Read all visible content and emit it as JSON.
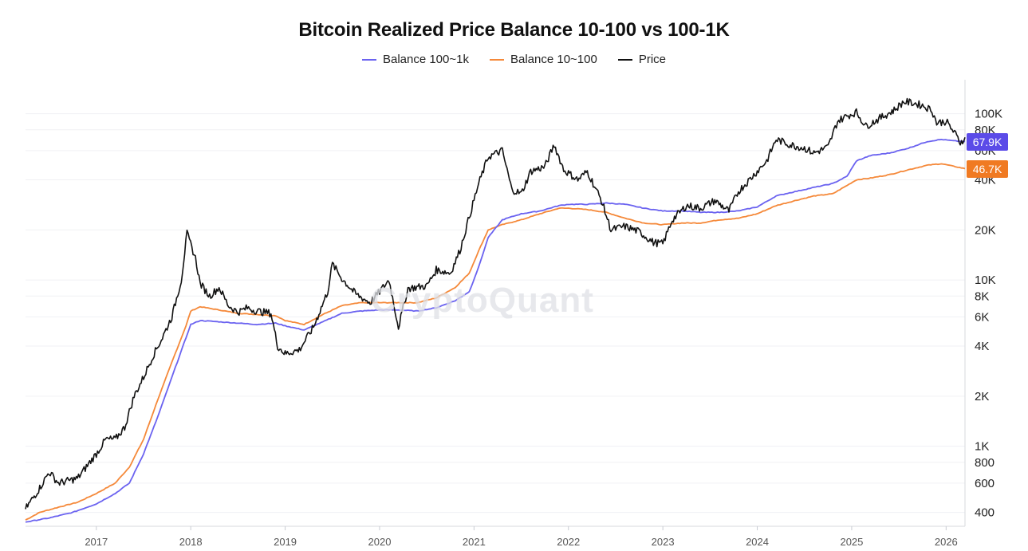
{
  "chart_data": {
    "type": "line",
    "title": "Bitcoin Realized Price Balance 10-100 vs 100-1K",
    "y_scale": "log",
    "ylim": [
      330,
      160000
    ],
    "xlim": [
      2016.25,
      2026.2
    ],
    "y_ticks": [
      {
        "value": 400,
        "label": "400"
      },
      {
        "value": 600,
        "label": "600"
      },
      {
        "value": 800,
        "label": "800"
      },
      {
        "value": 1000,
        "label": "1K"
      },
      {
        "value": 2000,
        "label": "2K"
      },
      {
        "value": 4000,
        "label": "4K"
      },
      {
        "value": 6000,
        "label": "6K"
      },
      {
        "value": 8000,
        "label": "8K"
      },
      {
        "value": 10000,
        "label": "10K"
      },
      {
        "value": 20000,
        "label": "20K"
      },
      {
        "value": 40000,
        "label": "40K"
      },
      {
        "value": 60000,
        "label": "60K"
      },
      {
        "value": 80000,
        "label": "80K"
      },
      {
        "value": 100000,
        "label": "100K"
      }
    ],
    "x_ticks": [
      {
        "value": 2017,
        "label": "2017"
      },
      {
        "value": 2018,
        "label": "2018"
      },
      {
        "value": 2019,
        "label": "2019"
      },
      {
        "value": 2020,
        "label": "2020"
      },
      {
        "value": 2021,
        "label": "2021"
      },
      {
        "value": 2022,
        "label": "2022"
      },
      {
        "value": 2023,
        "label": "2023"
      },
      {
        "value": 2024,
        "label": "2024"
      },
      {
        "value": 2025,
        "label": "2025"
      },
      {
        "value": 2026,
        "label": "2026"
      }
    ],
    "grid": true,
    "legend": "top-center",
    "series": [
      {
        "name": "Balance 100~1k",
        "color": "#6b63f0",
        "last_value_label": "67.9K",
        "points": [
          [
            2016.25,
            350
          ],
          [
            2016.5,
            370
          ],
          [
            2016.75,
            400
          ],
          [
            2017.0,
            450
          ],
          [
            2017.2,
            520
          ],
          [
            2017.35,
            600
          ],
          [
            2017.5,
            900
          ],
          [
            2017.65,
            1500
          ],
          [
            2017.8,
            2600
          ],
          [
            2017.95,
            4500
          ],
          [
            2018.0,
            5400
          ],
          [
            2018.1,
            5700
          ],
          [
            2018.3,
            5600
          ],
          [
            2018.5,
            5500
          ],
          [
            2018.7,
            5400
          ],
          [
            2018.9,
            5500
          ],
          [
            2019.0,
            5300
          ],
          [
            2019.2,
            5000
          ],
          [
            2019.4,
            5600
          ],
          [
            2019.6,
            6300
          ],
          [
            2019.8,
            6500
          ],
          [
            2020.0,
            6600
          ],
          [
            2020.2,
            6600
          ],
          [
            2020.4,
            6500
          ],
          [
            2020.6,
            6800
          ],
          [
            2020.8,
            7500
          ],
          [
            2020.95,
            8500
          ],
          [
            2021.05,
            12000
          ],
          [
            2021.15,
            18000
          ],
          [
            2021.3,
            23000
          ],
          [
            2021.5,
            25000
          ],
          [
            2021.7,
            26000
          ],
          [
            2021.9,
            28000
          ],
          [
            2022.0,
            28500
          ],
          [
            2022.2,
            28500
          ],
          [
            2022.4,
            29000
          ],
          [
            2022.6,
            28500
          ],
          [
            2022.8,
            27000
          ],
          [
            2023.0,
            26000
          ],
          [
            2023.2,
            26000
          ],
          [
            2023.4,
            25500
          ],
          [
            2023.6,
            25500
          ],
          [
            2023.8,
            26000
          ],
          [
            2024.0,
            27500
          ],
          [
            2024.2,
            32000
          ],
          [
            2024.4,
            34000
          ],
          [
            2024.6,
            36000
          ],
          [
            2024.8,
            38000
          ],
          [
            2024.95,
            42000
          ],
          [
            2025.05,
            52000
          ],
          [
            2025.2,
            56000
          ],
          [
            2025.4,
            58000
          ],
          [
            2025.6,
            62000
          ],
          [
            2025.8,
            68000
          ],
          [
            2025.95,
            70000
          ],
          [
            2026.1,
            68500
          ],
          [
            2026.2,
            67900
          ]
        ]
      },
      {
        "name": "Balance 10~100",
        "color": "#f5893a",
        "last_value_label": "46.7K",
        "points": [
          [
            2016.25,
            360
          ],
          [
            2016.4,
            400
          ],
          [
            2016.6,
            430
          ],
          [
            2016.8,
            460
          ],
          [
            2017.0,
            520
          ],
          [
            2017.2,
            600
          ],
          [
            2017.35,
            750
          ],
          [
            2017.5,
            1100
          ],
          [
            2017.65,
            1900
          ],
          [
            2017.8,
            3200
          ],
          [
            2017.95,
            5300
          ],
          [
            2018.0,
            6500
          ],
          [
            2018.1,
            6900
          ],
          [
            2018.3,
            6600
          ],
          [
            2018.5,
            6300
          ],
          [
            2018.7,
            6200
          ],
          [
            2018.9,
            6100
          ],
          [
            2019.0,
            5700
          ],
          [
            2019.2,
            5400
          ],
          [
            2019.4,
            6200
          ],
          [
            2019.6,
            7000
          ],
          [
            2019.8,
            7300
          ],
          [
            2020.0,
            7300
          ],
          [
            2020.2,
            7300
          ],
          [
            2020.4,
            7300
          ],
          [
            2020.6,
            7800
          ],
          [
            2020.8,
            9000
          ],
          [
            2020.95,
            11000
          ],
          [
            2021.05,
            15000
          ],
          [
            2021.15,
            20000
          ],
          [
            2021.3,
            21500
          ],
          [
            2021.5,
            23000
          ],
          [
            2021.7,
            25000
          ],
          [
            2021.9,
            27000
          ],
          [
            2022.0,
            27000
          ],
          [
            2022.2,
            26500
          ],
          [
            2022.4,
            25500
          ],
          [
            2022.6,
            23500
          ],
          [
            2022.8,
            22000
          ],
          [
            2023.0,
            21500
          ],
          [
            2023.2,
            22000
          ],
          [
            2023.4,
            22000
          ],
          [
            2023.6,
            23000
          ],
          [
            2023.8,
            23500
          ],
          [
            2024.0,
            25000
          ],
          [
            2024.2,
            28000
          ],
          [
            2024.4,
            30000
          ],
          [
            2024.6,
            32000
          ],
          [
            2024.8,
            33000
          ],
          [
            2024.95,
            37000
          ],
          [
            2025.05,
            40000
          ],
          [
            2025.2,
            41000
          ],
          [
            2025.4,
            43000
          ],
          [
            2025.6,
            46000
          ],
          [
            2025.8,
            49000
          ],
          [
            2025.95,
            50000
          ],
          [
            2026.1,
            48000
          ],
          [
            2026.2,
            46700
          ]
        ]
      },
      {
        "name": "Price",
        "color": "#111111",
        "points": [
          [
            2016.25,
            420
          ],
          [
            2016.4,
            560
          ],
          [
            2016.5,
            700
          ],
          [
            2016.6,
            600
          ],
          [
            2016.8,
            640
          ],
          [
            2017.0,
            900
          ],
          [
            2017.1,
            1100
          ],
          [
            2017.2,
            1100
          ],
          [
            2017.3,
            1300
          ],
          [
            2017.4,
            2000
          ],
          [
            2017.5,
            2600
          ],
          [
            2017.6,
            3500
          ],
          [
            2017.7,
            4500
          ],
          [
            2017.8,
            6000
          ],
          [
            2017.9,
            10000
          ],
          [
            2017.96,
            19000
          ],
          [
            2018.05,
            13500
          ],
          [
            2018.1,
            9500
          ],
          [
            2018.2,
            8000
          ],
          [
            2018.3,
            9000
          ],
          [
            2018.4,
            7000
          ],
          [
            2018.5,
            6400
          ],
          [
            2018.6,
            6800
          ],
          [
            2018.7,
            6500
          ],
          [
            2018.85,
            6300
          ],
          [
            2018.92,
            4000
          ],
          [
            2019.0,
            3600
          ],
          [
            2019.15,
            3800
          ],
          [
            2019.3,
            5200
          ],
          [
            2019.45,
            8500
          ],
          [
            2019.5,
            12500
          ],
          [
            2019.6,
            10200
          ],
          [
            2019.75,
            8200
          ],
          [
            2019.9,
            7300
          ],
          [
            2020.0,
            8500
          ],
          [
            2020.1,
            10000
          ],
          [
            2020.2,
            5200
          ],
          [
            2020.3,
            8900
          ],
          [
            2020.5,
            9200
          ],
          [
            2020.6,
            11500
          ],
          [
            2020.75,
            11000
          ],
          [
            2020.85,
            15000
          ],
          [
            2020.95,
            24000
          ],
          [
            2021.05,
            38000
          ],
          [
            2021.15,
            55000
          ],
          [
            2021.3,
            60000
          ],
          [
            2021.4,
            35000
          ],
          [
            2021.5,
            33000
          ],
          [
            2021.6,
            45000
          ],
          [
            2021.75,
            48000
          ],
          [
            2021.85,
            65000
          ],
          [
            2021.95,
            46000
          ],
          [
            2022.1,
            40000
          ],
          [
            2022.2,
            45000
          ],
          [
            2022.35,
            30000
          ],
          [
            2022.45,
            20000
          ],
          [
            2022.6,
            21000
          ],
          [
            2022.75,
            19500
          ],
          [
            2022.9,
            16800
          ],
          [
            2023.0,
            16500
          ],
          [
            2023.1,
            23000
          ],
          [
            2023.25,
            28000
          ],
          [
            2023.4,
            27000
          ],
          [
            2023.55,
            30000
          ],
          [
            2023.7,
            26000
          ],
          [
            2023.8,
            34000
          ],
          [
            2023.95,
            42000
          ],
          [
            2024.1,
            52000
          ],
          [
            2024.2,
            70000
          ],
          [
            2024.35,
            65000
          ],
          [
            2024.5,
            62000
          ],
          [
            2024.6,
            58000
          ],
          [
            2024.75,
            63000
          ],
          [
            2024.85,
            90000
          ],
          [
            2024.95,
            97000
          ],
          [
            2025.05,
            102000
          ],
          [
            2025.15,
            84000
          ],
          [
            2025.3,
            94000
          ],
          [
            2025.45,
            105000
          ],
          [
            2025.55,
            118000
          ],
          [
            2025.65,
            116000
          ],
          [
            2025.75,
            112000
          ],
          [
            2025.85,
            105000
          ],
          [
            2025.9,
            88000
          ],
          [
            2026.0,
            90000
          ],
          [
            2026.1,
            75000
          ],
          [
            2026.15,
            67000
          ],
          [
            2026.2,
            72000
          ]
        ]
      }
    ]
  },
  "title": "Bitcoin Realized Price Balance 10-100 vs 100-1K",
  "legend": [
    {
      "label": "Balance 100~1k",
      "color": "#6b63f0"
    },
    {
      "label": "Balance 10~100",
      "color": "#f5893a"
    },
    {
      "label": "Price",
      "color": "#111111"
    }
  ],
  "watermark": "CryptoQuant",
  "badges": {
    "balance_100_1k": {
      "label": "67.9K",
      "color": "#5b4be8"
    },
    "balance_10_100": {
      "label": "46.7K",
      "color": "#f07a22"
    }
  }
}
